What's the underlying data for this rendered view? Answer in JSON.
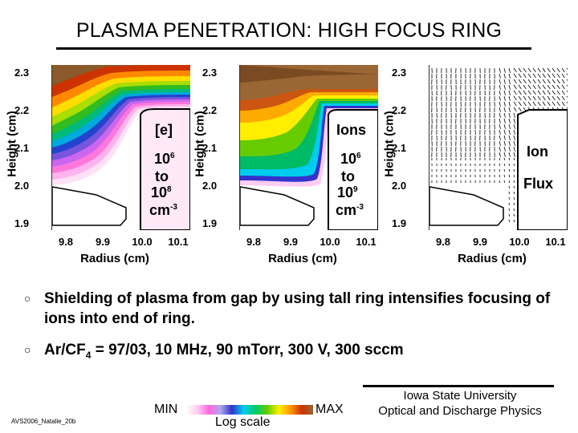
{
  "title": "PLASMA PENETRATION: HIGH FOCUS RING",
  "axes": {
    "ylabel": "Height (cm)",
    "xlabel": "Radius (cm)",
    "yticks": [
      "2.3",
      "2.2",
      "2.1",
      "2.0",
      "1.9"
    ],
    "xticks": [
      "9.8",
      "9.9",
      "10.0",
      "10.1"
    ]
  },
  "panels": {
    "electrons": {
      "species": "[e]",
      "exp_low": "6",
      "to": "to",
      "exp_high": "8",
      "base": "10",
      "unit": "cm",
      "unit_exp": "-3"
    },
    "ions": {
      "species": "Ions",
      "exp_low": "6",
      "to": "to",
      "exp_high": "9",
      "base": "10",
      "unit": "cm",
      "unit_exp": "-3"
    },
    "flux": {
      "line1": "Ion",
      "line2": "Flux"
    }
  },
  "bullets": [
    {
      "text": "Shielding of plasma from gap by using tall ring intensifies focusing of ions into end of ring."
    },
    {
      "pre": "Ar/CF",
      "sub": "4",
      "post": " = 97/03, 10 MHz, 90 mTorr, 300 V, 300 sccm"
    }
  ],
  "colorbar": {
    "min": "MIN",
    "max": "MAX",
    "caption": "Log scale"
  },
  "footer": {
    "code": "AVS2006_Natalie_20b",
    "university": "Iowa State University",
    "group": "Optical and Discharge Physics"
  },
  "colors": {
    "band_palette": [
      "#ffffff",
      "#ffccf2",
      "#ff66dd",
      "#aaaaee",
      "#3333cc",
      "#00ccee",
      "#00cc66",
      "#66cc00",
      "#ffee00",
      "#ff9900",
      "#cc3300",
      "#996633"
    ]
  }
}
